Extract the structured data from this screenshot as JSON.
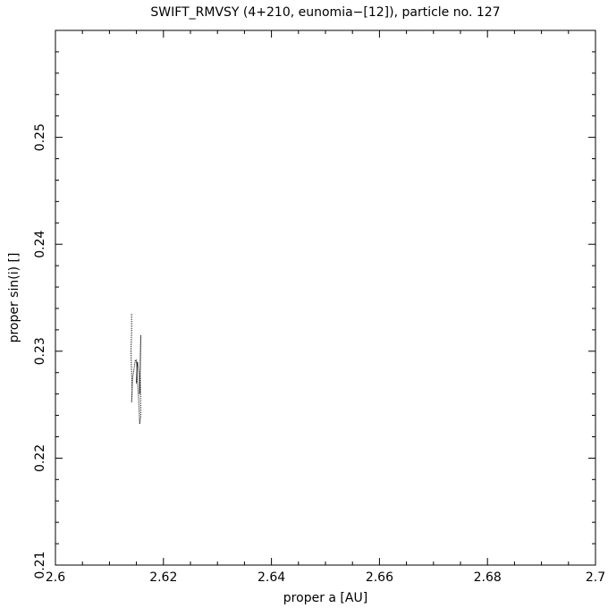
{
  "chart_data": {
    "type": "line",
    "title": "SWIFT_RMVSY (4+210, eunomia−[12]), particle no. 127",
    "x_label": "proper a [AU]",
    "y_label": "proper sin(i) []",
    "xlim": [
      2.6,
      2.7
    ],
    "ylim": [
      0.21,
      0.26
    ],
    "xticks": [
      2.6,
      2.62,
      2.64,
      2.66,
      2.68,
      2.7
    ],
    "yticks": [
      0.21,
      0.22,
      0.23,
      0.24,
      0.25
    ],
    "xticks_minor": [
      2.605,
      2.61,
      2.615,
      2.625,
      2.63,
      2.635,
      2.645,
      2.65,
      2.655,
      2.665,
      2.67,
      2.675,
      2.685,
      2.69,
      2.695
    ],
    "yticks_minor": [
      0.212,
      0.214,
      0.216,
      0.218,
      0.222,
      0.224,
      0.226,
      0.228,
      0.232,
      0.234,
      0.236,
      0.238,
      0.242,
      0.244,
      0.246,
      0.248,
      0.252,
      0.254,
      0.256,
      0.258
    ],
    "color": "#000000",
    "x": [
      2.6141,
      2.6141,
      2.614,
      2.6141,
      2.6142,
      2.6141,
      2.6143,
      2.6148,
      2.6151,
      2.615,
      2.6152,
      2.6155,
      2.6156,
      2.6158,
      2.6157,
      2.6158,
      2.6156,
      2.6154,
      2.6152,
      2.615
    ],
    "y": [
      0.2335,
      0.2318,
      0.23,
      0.228,
      0.2262,
      0.2252,
      0.2275,
      0.2292,
      0.2288,
      0.227,
      0.229,
      0.2278,
      0.226,
      0.2315,
      0.228,
      0.224,
      0.2232,
      0.2255,
      0.227,
      0.2292
    ]
  }
}
